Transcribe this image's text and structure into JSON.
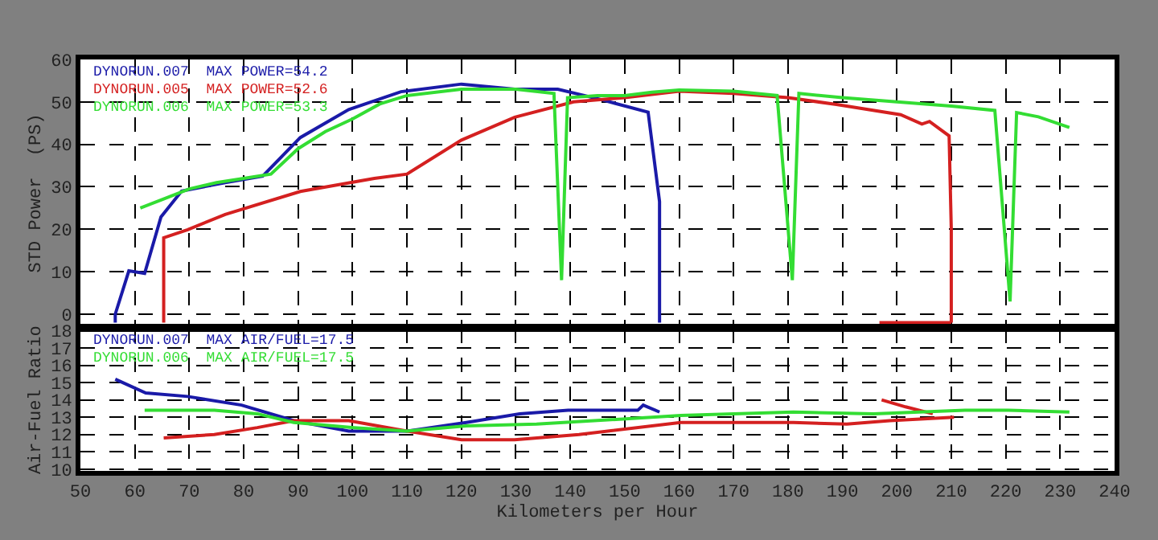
{
  "chart_data": [
    {
      "type": "line",
      "ylabel": "STD Power  (PS)",
      "xlim": [
        50,
        240
      ],
      "ylim": [
        -3,
        60
      ],
      "yticks": [
        0,
        10,
        20,
        30,
        40,
        50,
        60
      ],
      "xticks": [
        50,
        60,
        70,
        80,
        90,
        100,
        110,
        120,
        130,
        140,
        150,
        160,
        170,
        180,
        190,
        200,
        210,
        220,
        230,
        240
      ],
      "tick_labels": "y",
      "grid": true,
      "legend": false,
      "series": [
        {
          "name": "DYNORUN.007  MAX POWER=54.2",
          "color": "#1a1aa8",
          "x": [
            56.4,
            56.4,
            58.9,
            61.8,
            64.8,
            68.6,
            76.6,
            83.5,
            90.4,
            99.3,
            108.9,
            120,
            129.8,
            137.7,
            145.5,
            154.3,
            156.4,
            156.4
          ],
          "values": [
            -2,
            0,
            10.2,
            9.6,
            22.9,
            29,
            31,
            32.5,
            41.6,
            48.2,
            52.4,
            54.2,
            53,
            53,
            50.6,
            47.6,
            26.5,
            -2
          ]
        },
        {
          "name": "DYNORUN.005  MAX POWER=52.6",
          "color": "#d42020",
          "x": [
            65.3,
            65.3,
            69.7,
            76.6,
            90.4,
            104,
            110,
            120,
            129.8,
            140.6,
            150,
            160,
            170,
            180,
            188.9,
            200.7,
            204.6,
            206,
            209.6,
            210,
            210,
            null,
            196.8,
            210
          ],
          "values": [
            -2,
            18,
            19.9,
            23.5,
            28.9,
            32,
            33,
            41,
            46.4,
            50,
            51,
            52.5,
            52,
            51,
            49.4,
            47,
            44.8,
            45.4,
            42,
            20,
            -2,
            null,
            -2,
            -2
          ]
        },
        {
          "name": "DYNORUN.006  MAX POWER=53.3",
          "color": "#33dd33",
          "x": [
            61,
            65,
            70,
            75,
            80,
            85,
            90,
            95,
            100,
            105,
            110,
            120,
            130,
            137,
            138.4,
            139.5,
            145,
            150,
            155,
            160,
            170,
            178,
            180.8,
            182,
            190,
            200,
            210,
            218,
            220.8,
            222,
            226,
            231.7
          ],
          "values": [
            25,
            27,
            29.5,
            31,
            32,
            33,
            39,
            43,
            46,
            49.5,
            51.5,
            53,
            53,
            52,
            8,
            51,
            51.5,
            51.5,
            52.3,
            52.8,
            52.5,
            51.5,
            8,
            52,
            51,
            50,
            49,
            48,
            3,
            47.5,
            46.5,
            44
          ]
        }
      ]
    },
    {
      "type": "line",
      "ylabel": "Air-Fuel Ratio",
      "xlabel": "Kilometers per Hour",
      "xlim": [
        50,
        240
      ],
      "ylim": [
        9.9,
        18.1
      ],
      "yticks": [
        10,
        11,
        12,
        13,
        14,
        15,
        16,
        17,
        18
      ],
      "xticks": [
        50,
        60,
        70,
        80,
        90,
        100,
        110,
        120,
        130,
        140,
        150,
        160,
        170,
        180,
        190,
        200,
        210,
        220,
        230,
        240
      ],
      "grid": true,
      "legend": false,
      "series": [
        {
          "name": "DYNORUN.007  MAX AIR/FUEL=17.5",
          "color": "#1a1aa8",
          "x": [
            56.4,
            62,
            69.7,
            79.6,
            89.2,
            99.3,
            110,
            120.9,
            130.7,
            139.6,
            146.4,
            152.4,
            153.4,
            156.4
          ],
          "values": [
            15.2,
            14.4,
            14.2,
            13.7,
            12.8,
            12.2,
            12.2,
            12.7,
            13.2,
            13.4,
            13.4,
            13.4,
            13.7,
            13.3
          ]
        },
        {
          "color": "#d42020",
          "x": [
            65.3,
            74.6,
            82.5,
            89.2,
            99.3,
            110,
            120,
            129.8,
            141.6,
            160.3,
            181,
            190.8,
            198.7,
            210.5
          ],
          "values": [
            11.8,
            12,
            12.4,
            12.8,
            12.8,
            12.2,
            11.7,
            11.7,
            12,
            12.7,
            12.7,
            12.6,
            12.8,
            13
          ]
        },
        {
          "color": "#d42020",
          "x": [
            197.2,
            201.6,
            206.6
          ],
          "values": [
            14,
            13.6,
            13.2
          ]
        },
        {
          "name": "DYNORUN.006  MAX AIR/FUEL=17.5",
          "color": "#33dd33",
          "x": [
            61.8,
            74.6,
            82.5,
            89.2,
            100.3,
            110,
            120.9,
            133.8,
            160.3,
            181,
            195.7,
            212.5,
            220.5,
            231.7
          ],
          "values": [
            13.4,
            13.4,
            13.2,
            12.7,
            12.4,
            12.2,
            12.5,
            12.6,
            13.1,
            13.3,
            13.2,
            13.4,
            13.4,
            13.3
          ]
        }
      ]
    }
  ]
}
